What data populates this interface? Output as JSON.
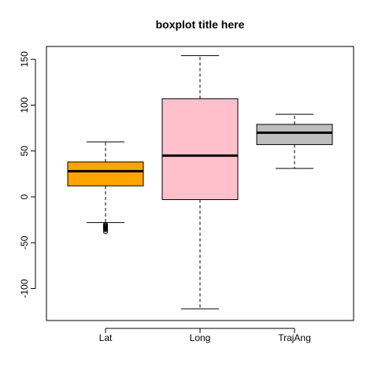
{
  "chart_data": {
    "type": "boxplot",
    "title": "boxplot title here",
    "xlabel": "",
    "ylabel": "",
    "ylim": [
      -135,
      160
    ],
    "yticks": [
      -100,
      -50,
      0,
      50,
      100,
      150
    ],
    "ytick_labels": [
      "-100",
      "-50",
      "0",
      "50",
      "100",
      "150"
    ],
    "grid": false,
    "categories": [
      "Lat",
      "Long",
      "TrajAng"
    ],
    "boxes": [
      {
        "category": "Lat",
        "whisker_low": -28,
        "q1": 12,
        "median": 28,
        "q3": 38,
        "whisker_high": 60,
        "fill": "#FFA500",
        "outliers": [
          -30,
          -31,
          -32,
          -32.5,
          -33,
          -34,
          -34.5,
          -35,
          -36,
          -38
        ]
      },
      {
        "category": "Long",
        "whisker_low": -122,
        "q1": -3,
        "median": 45,
        "q3": 107,
        "whisker_high": 154,
        "fill": "#FFC0CB",
        "outliers": []
      },
      {
        "category": "TrajAng",
        "whisker_low": 31,
        "q1": 57,
        "median": 70,
        "q3": 79,
        "whisker_high": 90,
        "fill": "#BEBEBE",
        "outliers": []
      }
    ]
  }
}
